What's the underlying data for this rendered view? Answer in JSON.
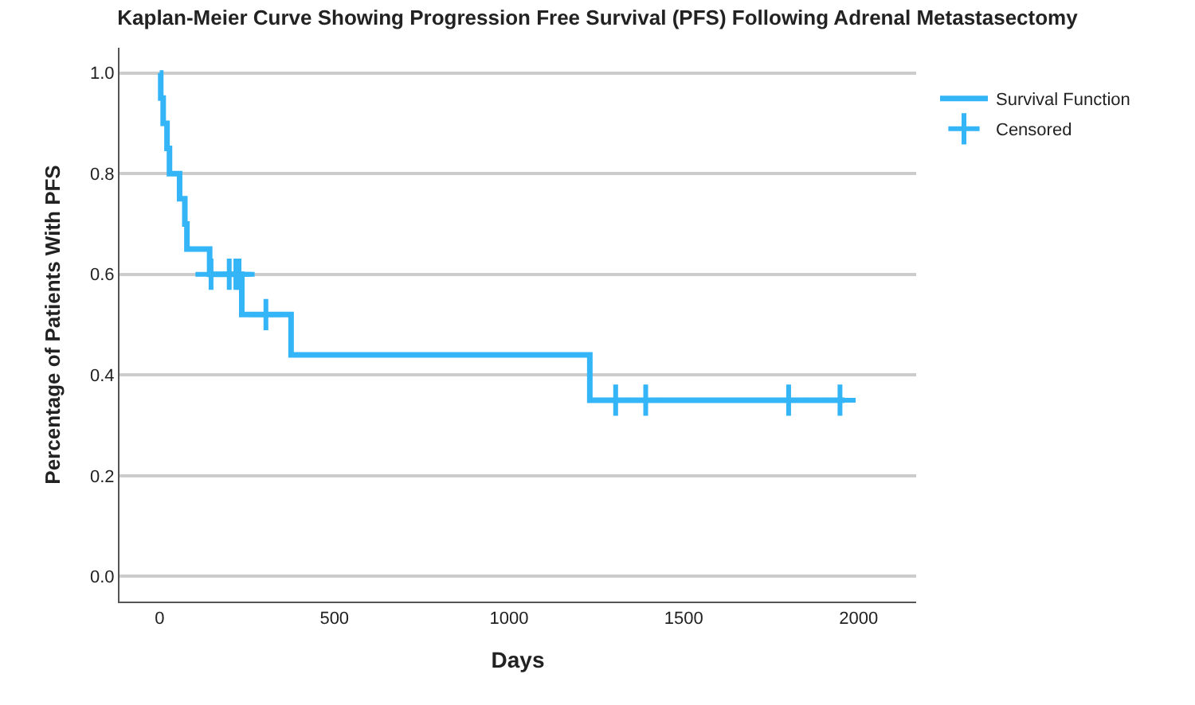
{
  "chart_data": {
    "type": "step",
    "title": "Kaplan-Meier Curve Showing Progression Free Survival (PFS) Following Adrenal Metastasectomy",
    "xlabel": "Days",
    "ylabel": "Percentage of Patients With PFS",
    "series": [
      {
        "name": "Survival Function",
        "color": "#33b5f7",
        "line_style": "solid",
        "x": [
          0,
          3,
          10,
          21,
          28,
          57,
          72,
          78,
          143,
          235,
          376,
          1231,
          1960
        ],
        "values": [
          1.0,
          0.95,
          0.9,
          0.85,
          0.8,
          0.75,
          0.7,
          0.65,
          0.6,
          0.52,
          0.44,
          0.35,
          0.35
        ]
      },
      {
        "name": "Censored",
        "type": "scatter",
        "color": "#33b5f7",
        "marker": "cross",
        "x": [
          147,
          199,
          218,
          227,
          304,
          1305,
          1391,
          1800,
          1947
        ],
        "values": [
          0.6,
          0.6,
          0.6,
          0.6,
          0.52,
          0.35,
          0.35,
          0.35,
          0.35
        ]
      }
    ],
    "xlim": [
      -115,
      2165
    ],
    "xticks": [
      0,
      500,
      1000,
      1500,
      2000
    ],
    "ylim": [
      -0.05,
      1.05
    ],
    "yticks": [
      {
        "value": 0,
        "label": "0.0"
      },
      {
        "value": 0.2,
        "label": "0.2"
      },
      {
        "value": 0.4,
        "label": "0.4"
      },
      {
        "value": 0.6,
        "label": "0.6"
      },
      {
        "value": 0.8,
        "label": "0.8"
      },
      {
        "value": 1,
        "label": "1.0"
      }
    ],
    "grid": "y",
    "legend": "top right"
  }
}
